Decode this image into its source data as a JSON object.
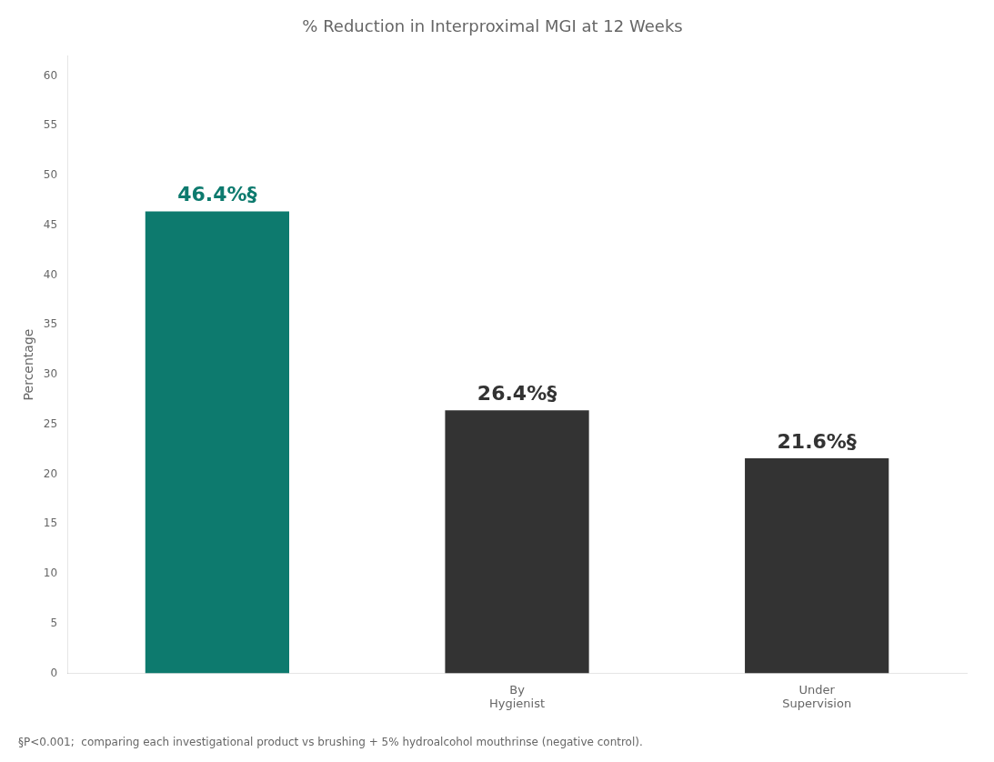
{
  "chart_data": {
    "type": "bar",
    "title": "% Reduction in Interproximal MGI at 12 Weeks",
    "y_label": "Percentage",
    "categories": [
      null,
      "By\nHygienist",
      "Under\nSupervision"
    ],
    "values": [
      46.4,
      26.4,
      21.6
    ],
    "value_labels": [
      "46.4%§",
      "26.4%§",
      "21.6%§"
    ],
    "data_labels": true,
    "colors": [
      "#0d7a6e",
      "#333333",
      "#333333"
    ],
    "ylim": [
      0,
      62
    ],
    "yticks": [
      0,
      5,
      10,
      15,
      20,
      25,
      30,
      35,
      40,
      45,
      50,
      55,
      60
    ],
    "grid": false,
    "annotations": [
      "§P<0.001;  comparing each investigational product vs brushing + 5% hydroalcohol mouthrinse (negative control)."
    ]
  }
}
